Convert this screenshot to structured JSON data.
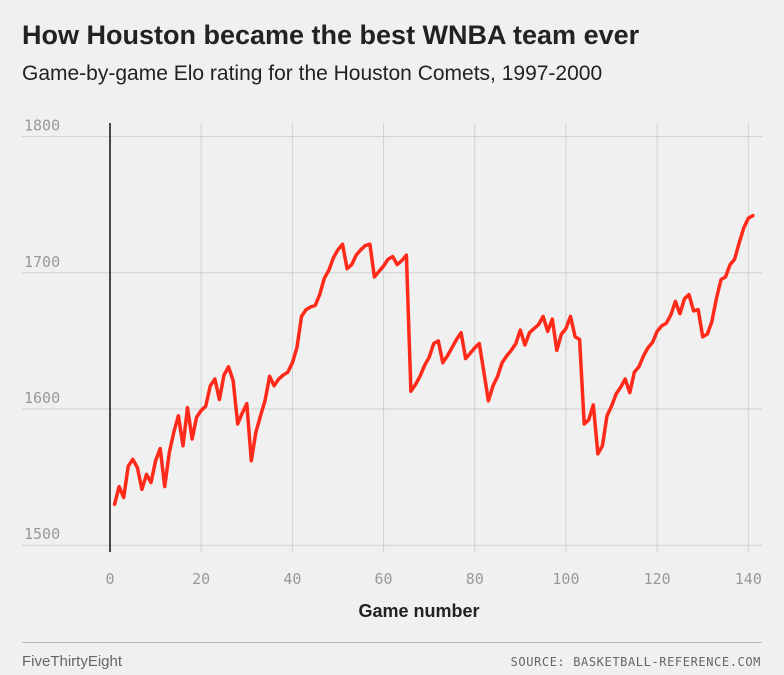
{
  "header": {
    "title": "How Houston became the best WNBA team ever",
    "subtitle": "Game-by-game Elo rating for the Houston Comets, 1997-2000"
  },
  "footer": {
    "brand": "FiveThirtyEight",
    "source": "SOURCE: BASKETBALL-REFERENCE.COM"
  },
  "colors": {
    "background": "#f0f0f0",
    "line": "#ff2a1a",
    "grid": "#d0d0d0",
    "tick_text": "#999999"
  },
  "chart_data": {
    "type": "line",
    "title": "How Houston became the best WNBA team ever",
    "subtitle": "Game-by-game Elo rating for the Houston Comets, 1997-2000",
    "xlabel": "Game number",
    "ylabel": "",
    "xlim": [
      0,
      143
    ],
    "ylim": [
      1495,
      1810
    ],
    "x_ticks": [
      0,
      20,
      40,
      60,
      80,
      100,
      120,
      140
    ],
    "y_ticks": [
      1500,
      1600,
      1700,
      1800
    ],
    "x_tick_labels": [
      "0",
      "20",
      "40",
      "60",
      "80",
      "100",
      "120",
      "140"
    ],
    "y_tick_labels": [
      "1500",
      "1600",
      "1700",
      "1800"
    ],
    "grid": true,
    "series": [
      {
        "name": "",
        "x": [
          1,
          2,
          3,
          4,
          5,
          6,
          7,
          8,
          9,
          10,
          11,
          12,
          13,
          14,
          15,
          16,
          17,
          18,
          19,
          20,
          21,
          22,
          23,
          24,
          25,
          26,
          27,
          28,
          29,
          30,
          31,
          32,
          33,
          34,
          35,
          36,
          37,
          38,
          39,
          40,
          41,
          42,
          43,
          44,
          45,
          46,
          47,
          48,
          49,
          50,
          51,
          52,
          53,
          54,
          55,
          56,
          57,
          58,
          59,
          60,
          61,
          62,
          63,
          64,
          65,
          66,
          67,
          68,
          69,
          70,
          71,
          72,
          73,
          74,
          75,
          76,
          77,
          78,
          79,
          80,
          81,
          82,
          83,
          84,
          85,
          86,
          87,
          88,
          89,
          90,
          91,
          92,
          93,
          94,
          95,
          96,
          97,
          98,
          99,
          100,
          101,
          102,
          103,
          104,
          105,
          106,
          107,
          108,
          109,
          110,
          111,
          112,
          113,
          114,
          115,
          116,
          117,
          118,
          119,
          120,
          121,
          122,
          123,
          124,
          125,
          126,
          127,
          128,
          129,
          130,
          131,
          132,
          133,
          134,
          135,
          136,
          137,
          138,
          139,
          140,
          141
        ],
        "values": [
          1530,
          1543,
          1535,
          1558,
          1563,
          1557,
          1541,
          1552,
          1546,
          1562,
          1571,
          1543,
          1568,
          1583,
          1595,
          1573,
          1601,
          1578,
          1594,
          1599,
          1602,
          1617,
          1622,
          1607,
          1625,
          1631,
          1621,
          1589,
          1597,
          1604,
          1562,
          1583,
          1595,
          1606,
          1624,
          1617,
          1622,
          1625,
          1627,
          1634,
          1645,
          1668,
          1673,
          1675,
          1676,
          1684,
          1696,
          1702,
          1711,
          1717,
          1721,
          1703,
          1706,
          1713,
          1717,
          1720,
          1721,
          1697,
          1701,
          1705,
          1710,
          1712,
          1706,
          1709,
          1713,
          1613,
          1618,
          1624,
          1632,
          1638,
          1648,
          1650,
          1634,
          1639,
          1645,
          1651,
          1656,
          1637,
          1641,
          1645,
          1648,
          1627,
          1606,
          1617,
          1624,
          1634,
          1639,
          1643,
          1648,
          1658,
          1647,
          1656,
          1659,
          1662,
          1668,
          1657,
          1666,
          1643,
          1655,
          1659,
          1668,
          1653,
          1651,
          1589,
          1592,
          1603,
          1567,
          1573,
          1595,
          1602,
          1611,
          1616,
          1622,
          1612,
          1627,
          1631,
          1639,
          1645,
          1649,
          1657,
          1661,
          1663,
          1669,
          1679,
          1670,
          1681,
          1684,
          1672,
          1673,
          1653,
          1655,
          1664,
          1681,
          1695,
          1697,
          1706,
          1710,
          1722,
          1733,
          1740,
          1742
        ]
      }
    ]
  }
}
